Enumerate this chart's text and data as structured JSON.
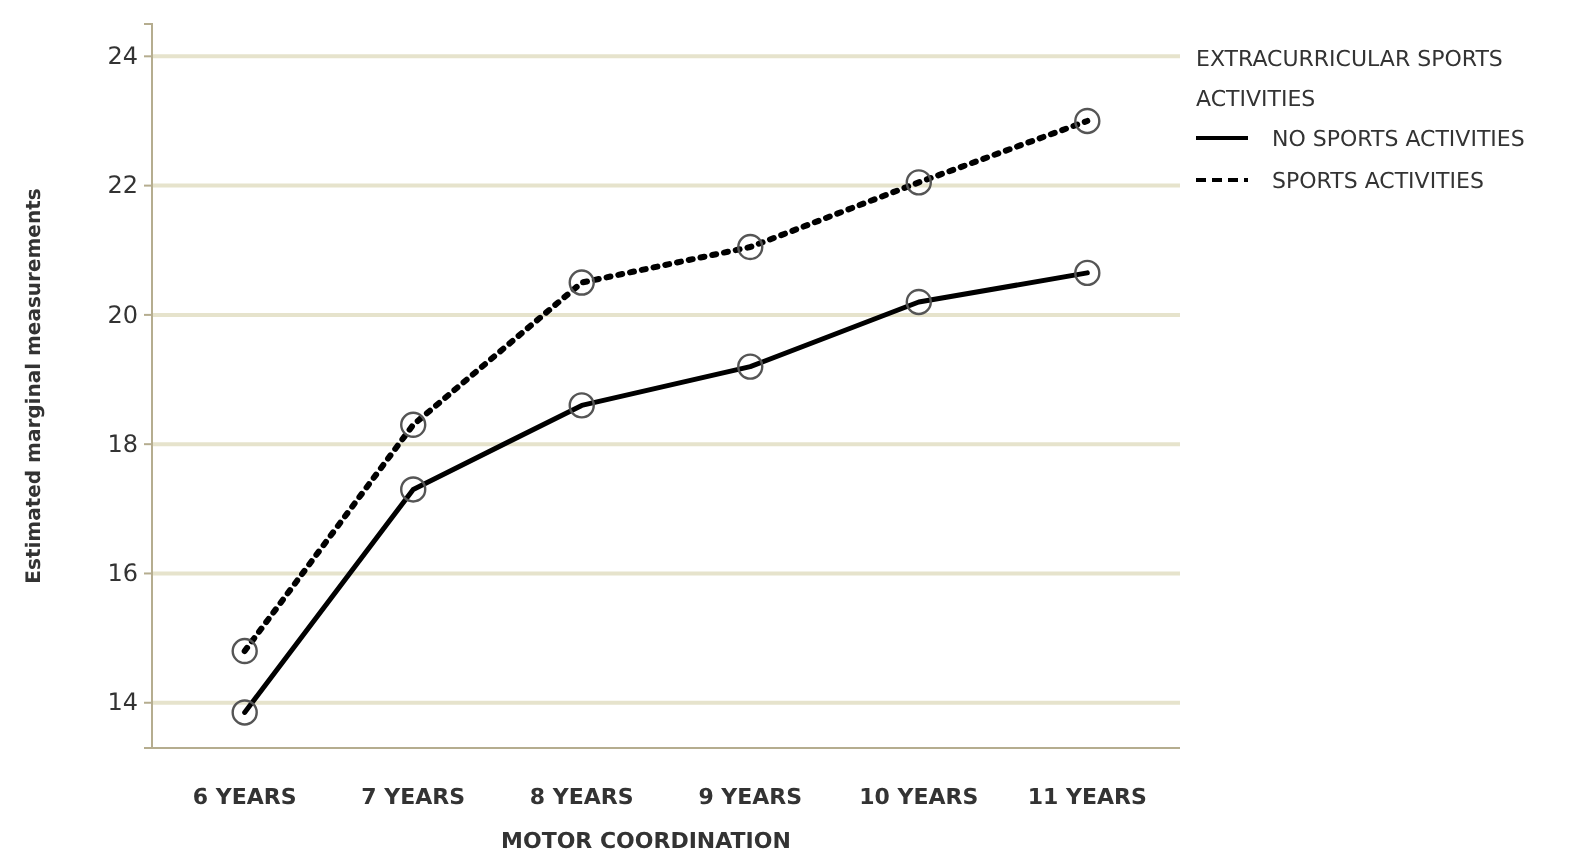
{
  "chart_data": {
    "type": "line",
    "xlabel": "MOTOR COORDINATION",
    "ylabel": "Estimated marginal measurements",
    "legend_title": "EXTRACURRICULAR  SPORTS ACTIVITIES",
    "categories": [
      "6 YEARS",
      "7 YEARS",
      "8 YEARS",
      "9 YEARS",
      "10 YEARS",
      "11 YEARS"
    ],
    "series": [
      {
        "name": "NO SPORTS ACTIVITIES",
        "color": "#000000",
        "line_style": "solid",
        "values": [
          13.85,
          17.3,
          18.6,
          19.2,
          20.2,
          20.65
        ]
      },
      {
        "name": "SPORTS ACTIVITIES",
        "color": "#000000",
        "line_style": "dotted",
        "values": [
          14.8,
          18.3,
          20.5,
          21.05,
          22.05,
          23.0
        ]
      }
    ],
    "ylim": [
      13.3,
      24.5
    ],
    "yticks": [
      14,
      16,
      18,
      20,
      22,
      24
    ],
    "grid": "y",
    "legend": "right",
    "marker": "circle"
  }
}
